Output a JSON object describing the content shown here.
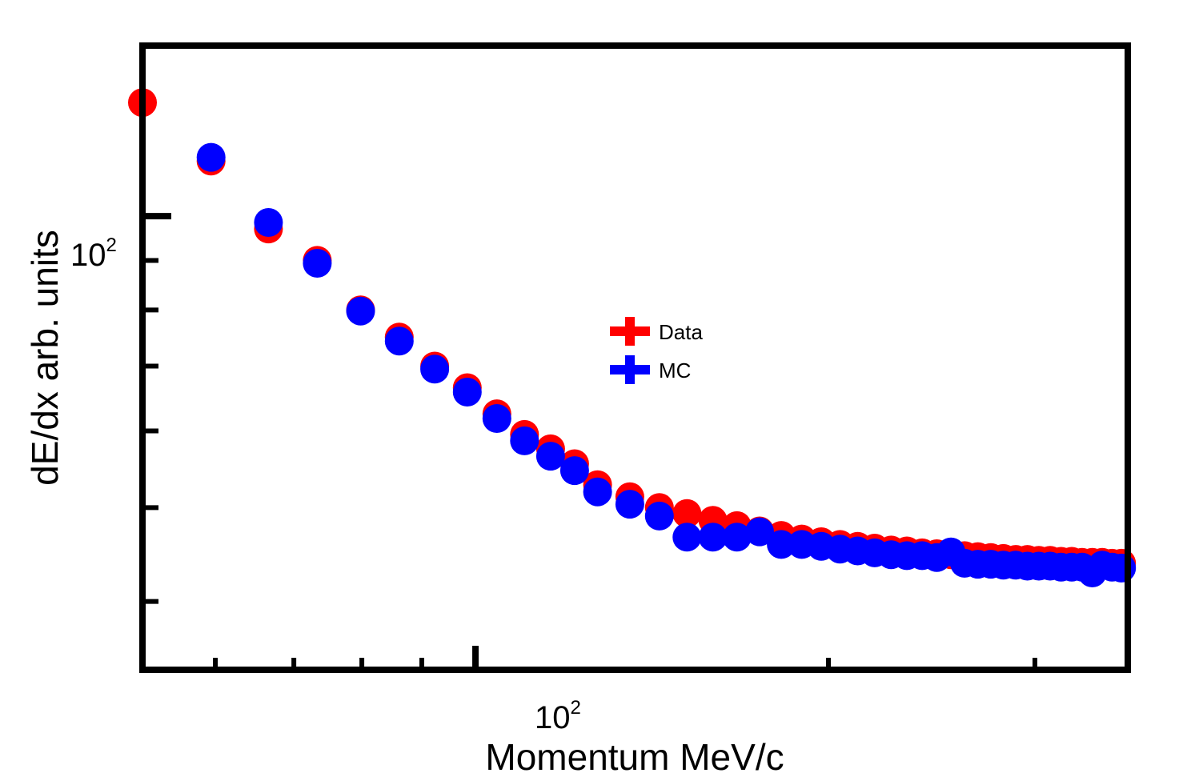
{
  "chart_data": {
    "type": "scatter",
    "xlabel": "Momentum MeV/c",
    "ylabel": "dE/dx arb. units",
    "xscale": "log",
    "yscale": "log",
    "xlim": [
      52,
      360
    ],
    "ylim": [
      34,
      150
    ],
    "xtick_labels": [
      {
        "value": 100,
        "base": "10",
        "exp": "2"
      }
    ],
    "ytick_labels": [
      {
        "value": 100,
        "base": "10",
        "exp": "2"
      }
    ],
    "grid": false,
    "legend_position": "center",
    "colors": {
      "Data": "#ff0000",
      "MC": "#0000ff"
    },
    "series": [
      {
        "name": "Data",
        "x": [
          52,
          59.5,
          66.6,
          73.3,
          79.8,
          86.1,
          92.3,
          98.4,
          104.3,
          110.1,
          115.9,
          121.5,
          127.1,
          135.4,
          143.5,
          151.5,
          159.4,
          167.1,
          174.7,
          182.3,
          189.8,
          197.2,
          204.6,
          211.8,
          219.0,
          226.2,
          233.3,
          240.4,
          247.4,
          254.4,
          261.3,
          268.2,
          275.1,
          282.0,
          288.8,
          295.6,
          302.3,
          309.1,
          315.8,
          322.5,
          329.1,
          335.8,
          342.4,
          349.0,
          355.6
        ],
        "y": [
          131,
          114,
          97,
          90,
          80,
          75,
          70,
          66.5,
          62.5,
          59.5,
          57.5,
          55.5,
          52.8,
          51.3,
          50,
          49.3,
          48.5,
          47.9,
          47.3,
          46.8,
          46.4,
          46.1,
          45.8,
          45.6,
          45.4,
          45.2,
          45.1,
          44.9,
          44.8,
          44.7,
          44.6,
          44.5,
          44.4,
          44.3,
          44.2,
          44.2,
          44.1,
          44.1,
          44,
          44,
          43.9,
          43.9,
          43.9,
          43.8,
          43.8
        ]
      },
      {
        "name": "MC",
        "x": [
          59.5,
          66.6,
          73.3,
          79.8,
          86.1,
          92.3,
          98.4,
          104.3,
          110.1,
          115.9,
          121.5,
          127.1,
          135.4,
          143.5,
          151.5,
          159.4,
          167.1,
          174.7,
          182.3,
          189.8,
          197.2,
          204.6,
          211.8,
          219.0,
          226.2,
          233.3,
          240.4,
          247.4,
          254.4,
          261.3,
          268.2,
          275.1,
          282.0,
          288.8,
          295.6,
          302.3,
          309.1,
          315.8,
          322.5,
          329.1,
          335.8,
          342.4,
          349.0,
          355.6
        ],
        "y": [
          115,
          98.5,
          89.4,
          79.8,
          74.3,
          69.5,
          65.8,
          61.8,
          58.6,
          56.5,
          54.6,
          51.9,
          50.4,
          49,
          46.6,
          46.6,
          46.6,
          47.2,
          45.8,
          45.8,
          45.6,
          45.3,
          45.1,
          44.9,
          44.7,
          44.6,
          44.6,
          44.4,
          45,
          43.8,
          43.7,
          43.7,
          43.6,
          43.6,
          43.5,
          43.5,
          43.5,
          43.4,
          43.4,
          43.4,
          42.8,
          43.6,
          43.4,
          43.3
        ]
      }
    ]
  }
}
